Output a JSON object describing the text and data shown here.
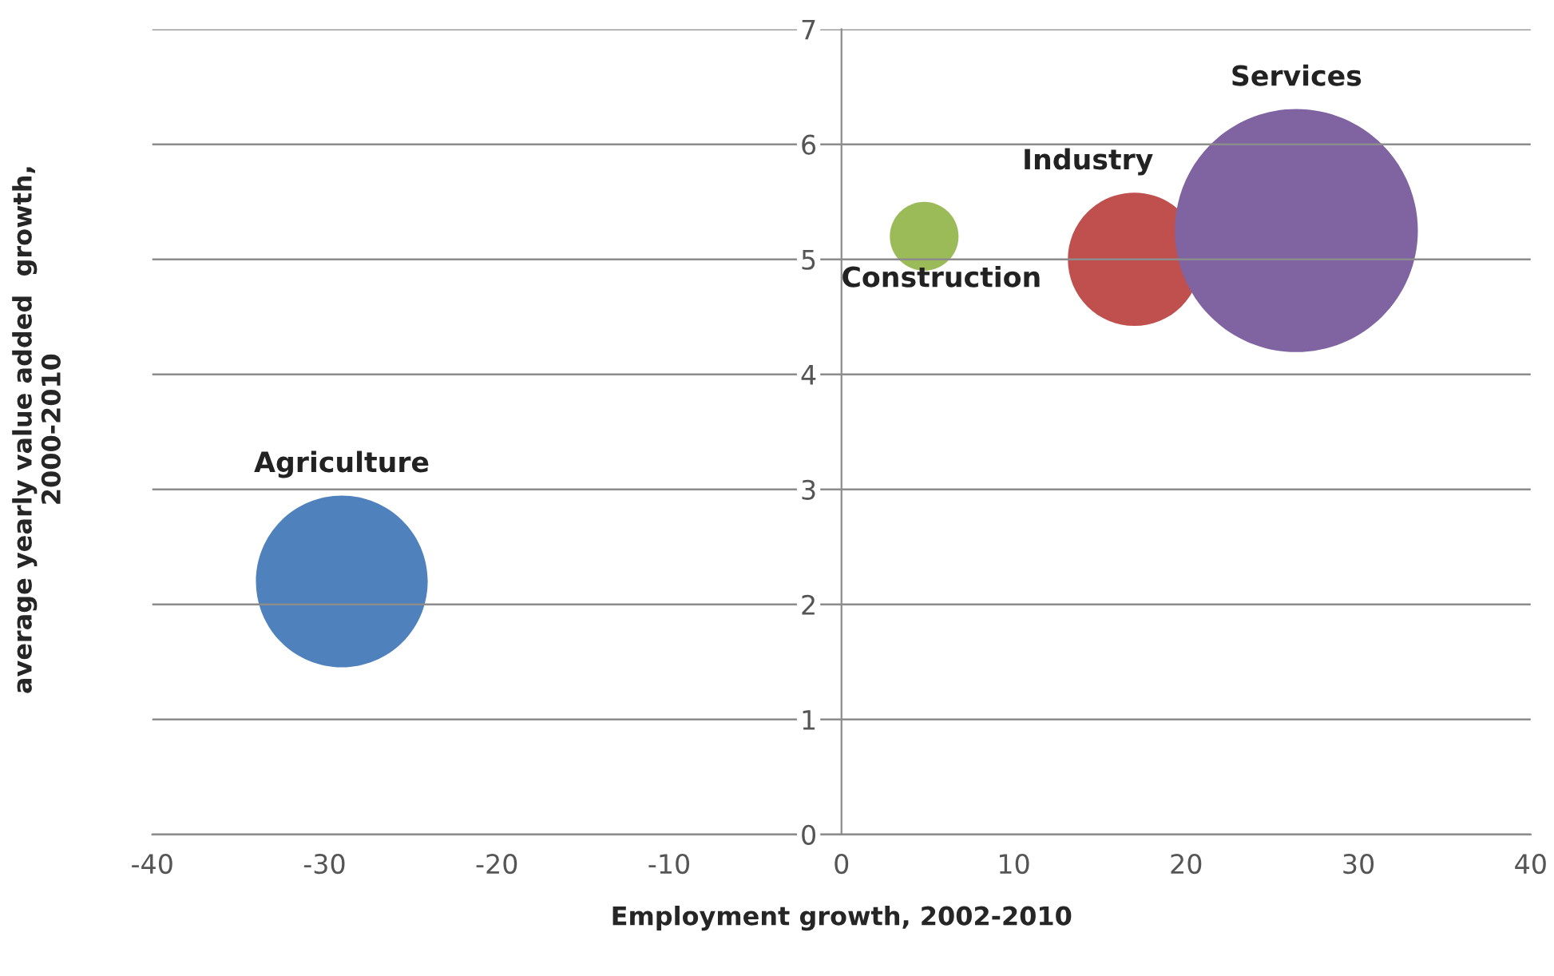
{
  "chart_data": {
    "type": "bubble",
    "xlabel": "Employment growth, 2002-2010",
    "ylabel": "average yearly value added  growth,\n2000-2010",
    "series": [
      {
        "name": "Agriculture",
        "color": "#4f81bd",
        "x": [
          -29
        ],
        "values": [
          2.2
        ],
        "sizes": [
          0.5
        ]
      },
      {
        "name": "Construction",
        "color": "#9bbb59",
        "x": [
          4.8
        ],
        "values": [
          5.2
        ],
        "sizes": [
          0.08
        ]
      },
      {
        "name": "Industry",
        "color": "#c0504d",
        "x": [
          17
        ],
        "values": [
          5.0
        ],
        "sizes": [
          0.3
        ]
      },
      {
        "name": "Services",
        "color": "#8064a2",
        "x": [
          26.4
        ],
        "values": [
          5.25
        ],
        "sizes": [
          1
        ]
      }
    ],
    "xlim": [
      -40,
      40
    ],
    "xticks": [
      -40,
      -30,
      -20,
      -10,
      0,
      10,
      20,
      30,
      40
    ],
    "ylim": [
      0,
      7
    ],
    "yticks": [
      0,
      1,
      2,
      3,
      4,
      5,
      6,
      7
    ],
    "grid": "y",
    "legend": false
  }
}
